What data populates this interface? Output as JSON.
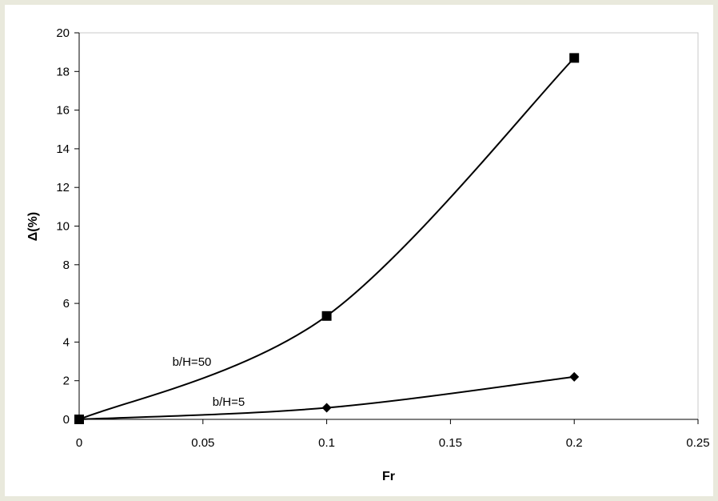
{
  "chart_data": {
    "type": "line",
    "xlabel": "Fr",
    "ylabel": "Δ(%)",
    "xlim": [
      0,
      0.25
    ],
    "ylim": [
      0,
      20
    ],
    "x_ticks": [
      "0",
      "0.05",
      "0.1",
      "0.15",
      "0.2",
      "0.25"
    ],
    "y_ticks": [
      "0",
      "2",
      "4",
      "6",
      "8",
      "10",
      "12",
      "14",
      "16",
      "18",
      "20"
    ],
    "grid": false,
    "legend": "none",
    "series": [
      {
        "label": "b/H=50",
        "marker": "square",
        "color": "#000000",
        "x": [
          0,
          0.1,
          0.2
        ],
        "y": [
          0,
          5.35,
          18.7
        ]
      },
      {
        "label": "b/H=5",
        "marker": "diamond",
        "color": "#000000",
        "x": [
          0,
          0.1,
          0.2
        ],
        "y": [
          0,
          0.6,
          2.2
        ]
      }
    ]
  }
}
